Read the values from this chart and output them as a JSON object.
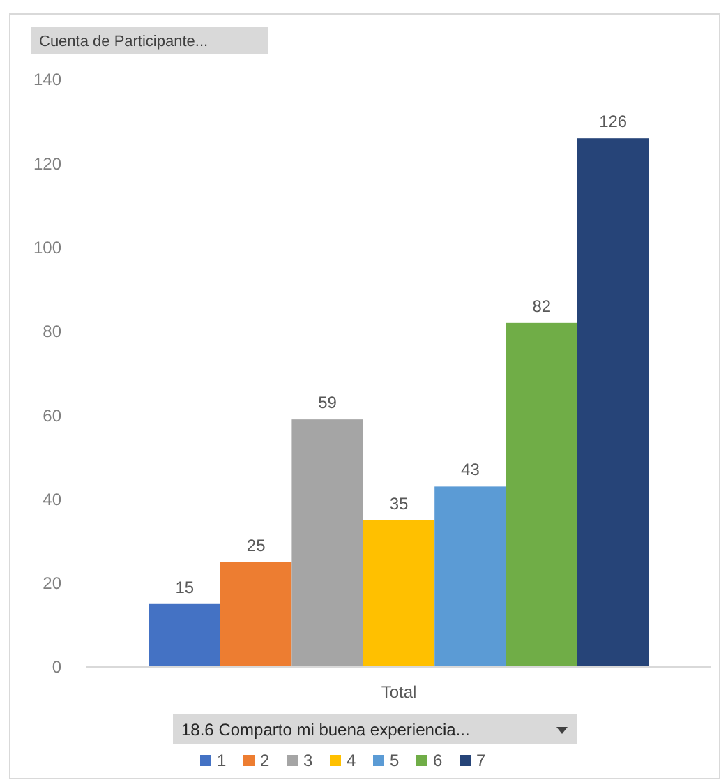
{
  "chart_data": {
    "type": "bar",
    "ylabel": "Cuenta de Participante...",
    "legend_title": "18.6 Comparto mi buena experiencia...",
    "categories": [
      "Total"
    ],
    "series": [
      {
        "name": "1",
        "color": "#4472c4",
        "values": [
          15
        ]
      },
      {
        "name": "2",
        "color": "#ed7d31",
        "values": [
          25
        ]
      },
      {
        "name": "3",
        "color": "#a5a5a5",
        "values": [
          59
        ]
      },
      {
        "name": "4",
        "color": "#ffc000",
        "values": [
          35
        ]
      },
      {
        "name": "5",
        "color": "#5b9bd5",
        "values": [
          43
        ]
      },
      {
        "name": "6",
        "color": "#70ad47",
        "values": [
          82
        ]
      },
      {
        "name": "7",
        "color": "#264478",
        "values": [
          126
        ]
      }
    ],
    "ylim": [
      0,
      140
    ],
    "yticks": [
      0,
      20,
      40,
      60,
      80,
      100,
      120,
      140
    ],
    "data_labels": true,
    "legend": "bottom"
  }
}
